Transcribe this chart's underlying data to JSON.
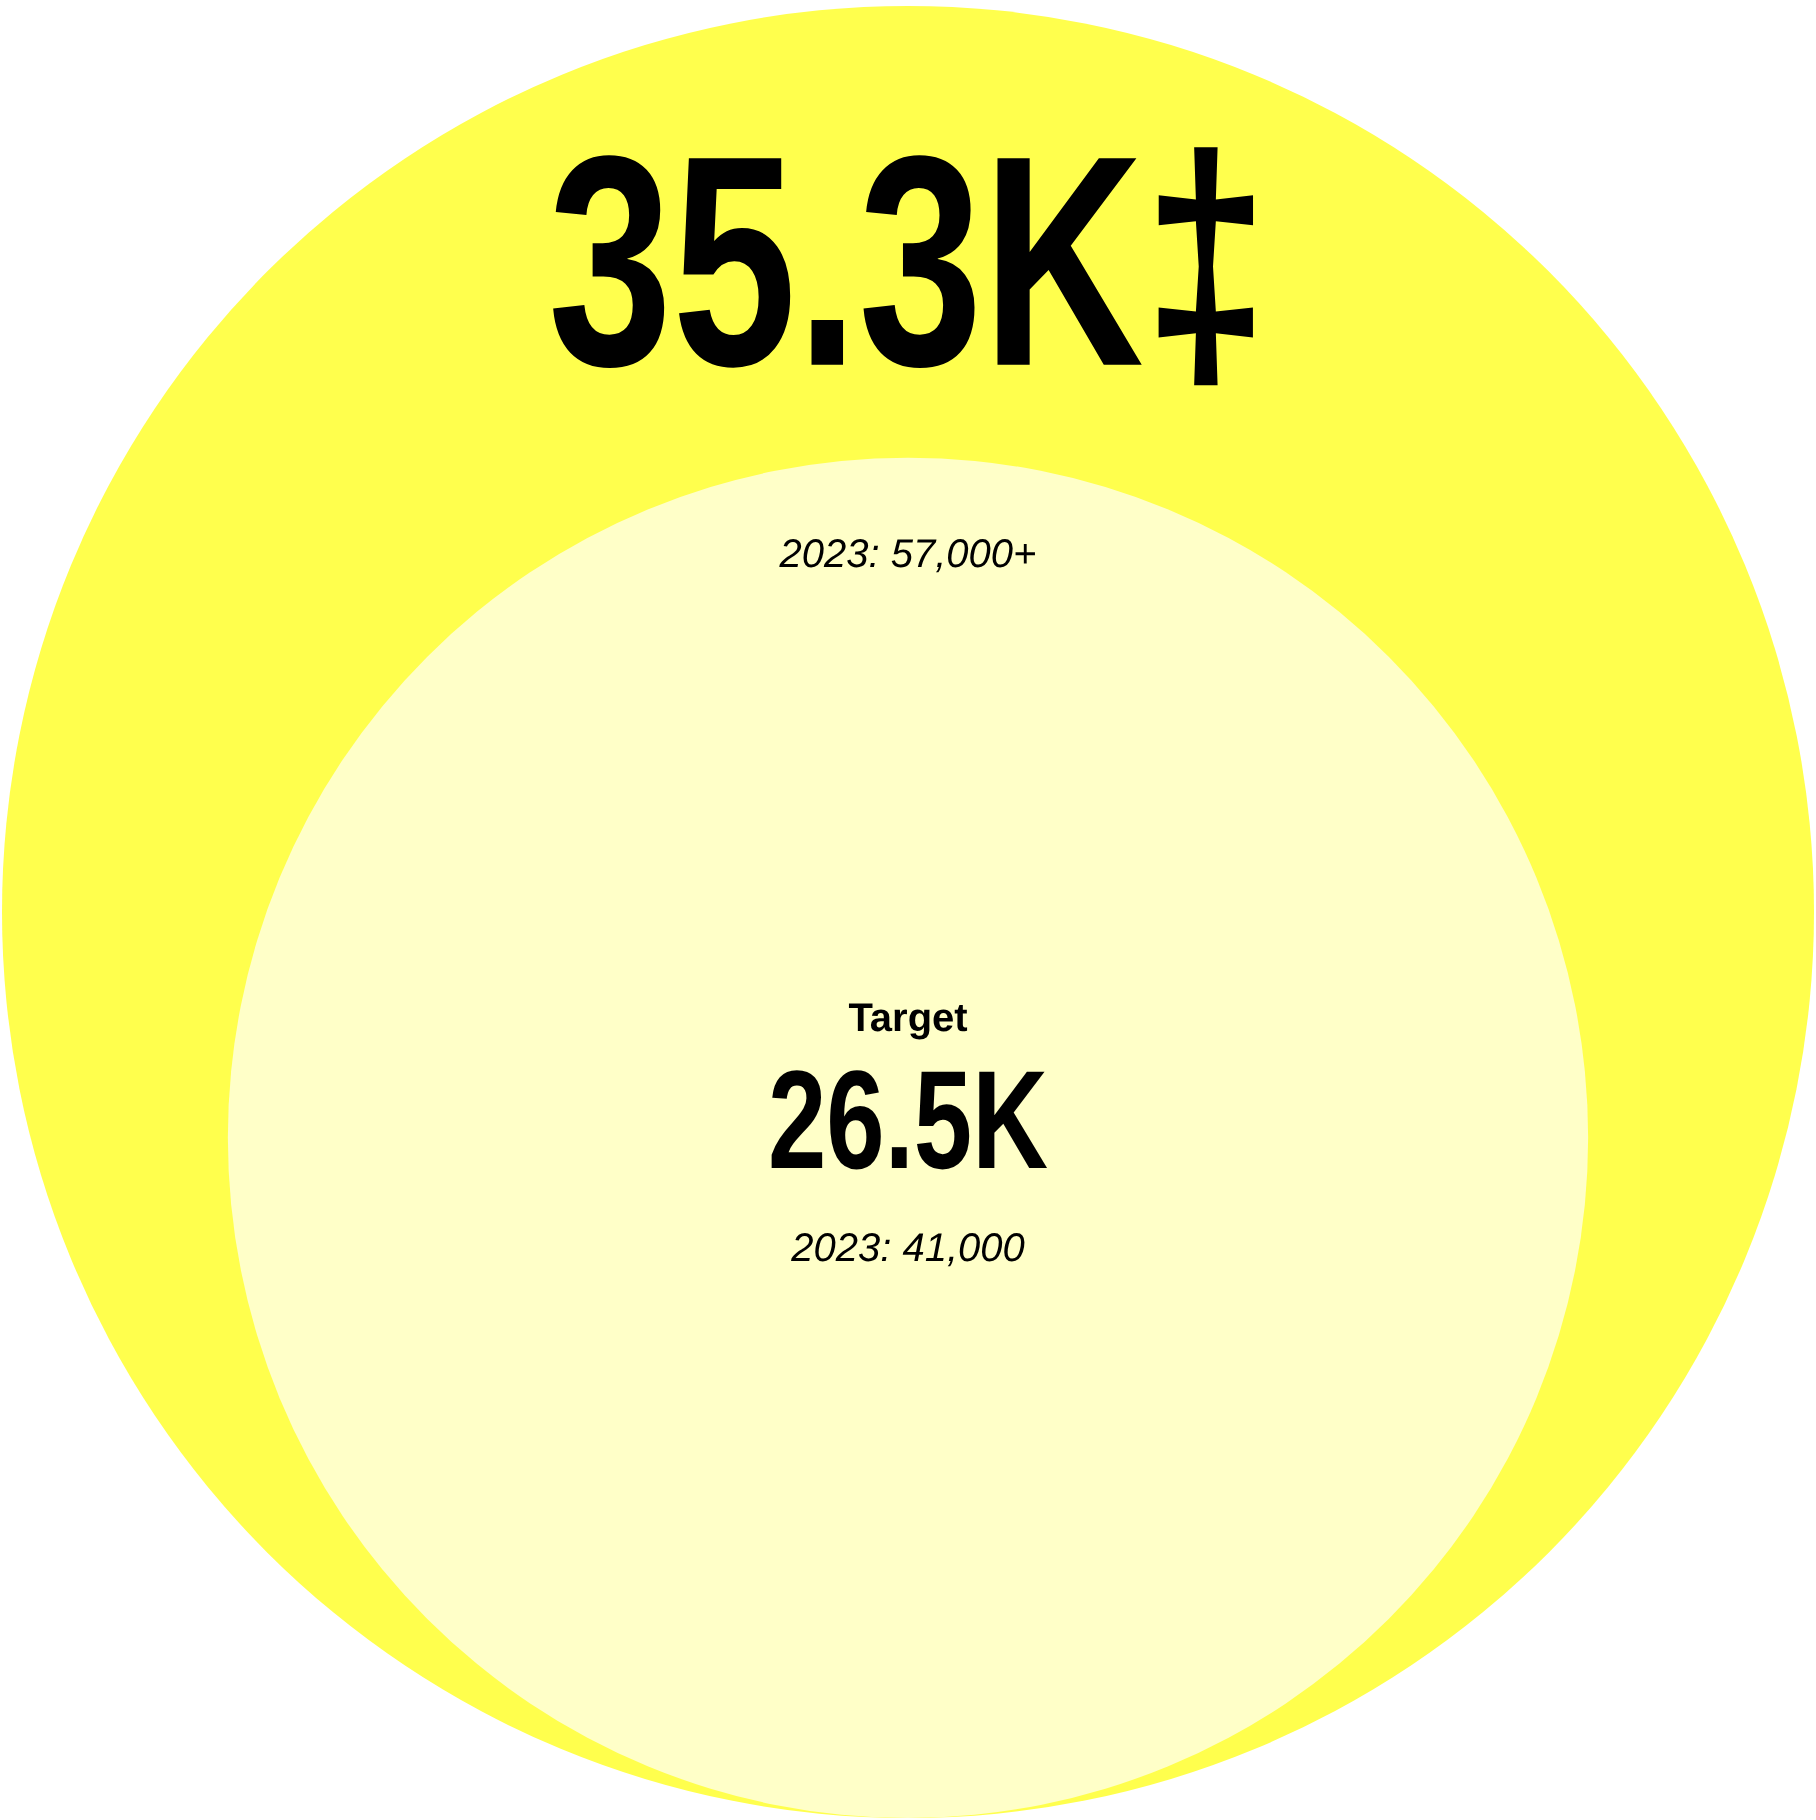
{
  "chart_data": {
    "type": "other",
    "categories": [
      null,
      "Target"
    ],
    "values": [
      35300,
      26500
    ],
    "value_labels": [
      "35.3K‡",
      "26.5K"
    ],
    "colors": [
      "#ffff4d",
      "#ffffc8"
    ],
    "annotations": [
      "2023: 57,000+",
      "2023: 41,000"
    ]
  }
}
